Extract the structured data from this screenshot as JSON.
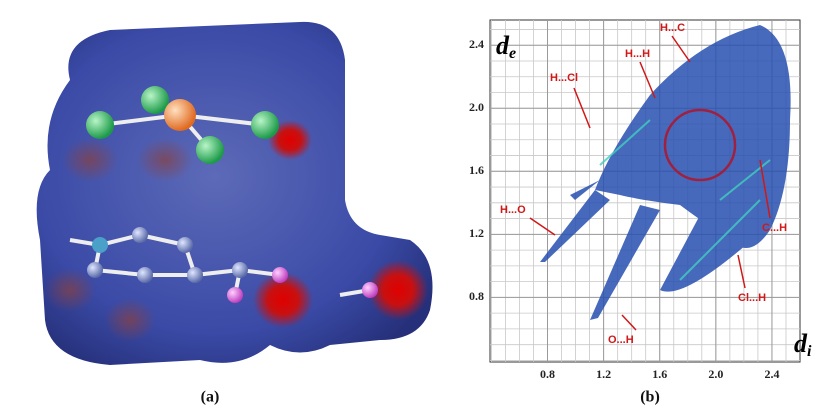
{
  "figure": {
    "panel_a": {
      "label": "(a)"
    },
    "panel_b": {
      "label": "(b)",
      "x_label": "d",
      "x_sub": "i",
      "y_label": "d",
      "y_sub": "e",
      "xlim": [
        0.39,
        2.6
      ],
      "ylim": [
        0.39,
        2.56
      ],
      "xticks": [
        0.8,
        1.2,
        1.6,
        {
          "value": 2,
          "label": "2.0"
        },
        2.4
      ],
      "yticks": [
        0.8,
        1.2,
        1.6,
        {
          "value": 2,
          "label": "2.0"
        },
        2.4
      ],
      "annotations": [
        "H...C",
        "H...H",
        "H...Cl",
        "H...O",
        "C...H",
        "Cl...H",
        "O...H"
      ]
    }
  }
}
